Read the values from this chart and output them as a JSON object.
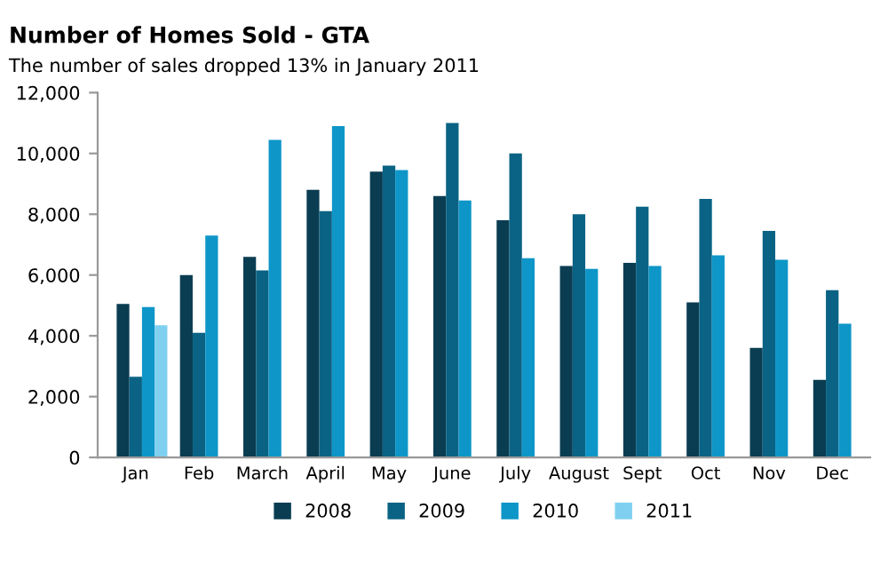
{
  "chart_data": {
    "type": "bar",
    "title": "Number of Homes Sold - GTA",
    "subtitle": "The number of sales dropped 13% in January 2011",
    "categories": [
      "Jan",
      "Feb",
      "March",
      "April",
      "May",
      "June",
      "July",
      "August",
      "Sept",
      "Oct",
      "Nov",
      "Dec"
    ],
    "series": [
      {
        "name": "2008",
        "color": "#0a3d52",
        "values": [
          5050,
          6000,
          6600,
          8800,
          9400,
          8600,
          7800,
          6300,
          6400,
          5100,
          3600,
          2550
        ]
      },
      {
        "name": "2009",
        "color": "#0a6384",
        "values": [
          2650,
          4100,
          6150,
          8100,
          9600,
          11000,
          10000,
          8000,
          8250,
          8500,
          7450,
          5500
        ]
      },
      {
        "name": "2010",
        "color": "#0e96c8",
        "values": [
          4950,
          7300,
          10450,
          10900,
          9450,
          8450,
          6550,
          6200,
          6300,
          6650,
          6500,
          4400
        ]
      },
      {
        "name": "2011",
        "color": "#7fd0f0",
        "values": [
          4350,
          null,
          null,
          null,
          null,
          null,
          null,
          null,
          null,
          null,
          null,
          null
        ]
      }
    ],
    "ylim": [
      0,
      12000
    ],
    "yticks": [
      {
        "value": 0,
        "label": "0"
      },
      {
        "value": 2000,
        "label": "2,000"
      },
      {
        "value": 4000,
        "label": "4,000"
      },
      {
        "value": 6000,
        "label": "6,000"
      },
      {
        "value": 8000,
        "label": "8,000"
      },
      {
        "value": 10000,
        "label": "10,000"
      },
      {
        "value": 12000,
        "label": "12,000"
      }
    ],
    "grid": false,
    "legend": "bottom"
  }
}
